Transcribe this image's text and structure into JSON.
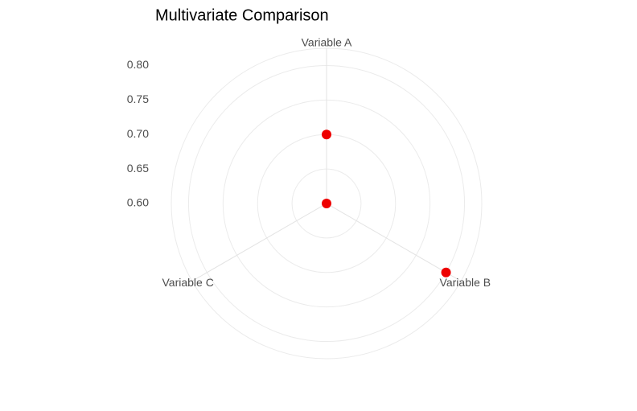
{
  "chart_data": {
    "type": "radar",
    "title": "Multivariate Comparison",
    "categories": [
      "Variable A",
      "Variable B",
      "Variable C"
    ],
    "values": [
      0.7,
      0.8,
      0.6
    ],
    "color": "#ee0000",
    "ylim": [
      0.6,
      0.825
    ],
    "yticks": [
      0.6,
      0.65,
      0.7,
      0.75,
      0.8
    ],
    "ytick_labels": [
      "0.60",
      "0.65",
      "0.70",
      "0.75",
      "0.80"
    ],
    "grid": true
  }
}
